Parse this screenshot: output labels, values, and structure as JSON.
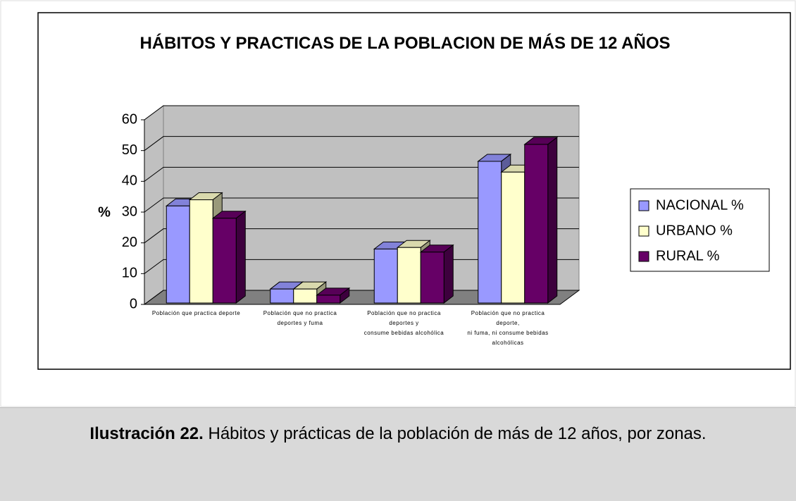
{
  "chart_data": {
    "type": "bar3d",
    "title": "HÁBITOS Y PRACTICAS DE LA POBLACION DE MÁS DE 12 AÑOS",
    "ylabel": "%",
    "categories": [
      "Población que practica deporte",
      "Población que no practica\ndeportes y fuma",
      "Población que no practica\ndeportes y\nconsume bebidas alcohólica",
      "Población que no practica\ndeporte,\nni fuma, ni consume bebidas\nalcohólicas"
    ],
    "series": [
      {
        "name": "NACIONAL %",
        "color": "#9999ff",
        "values": [
          32,
          5,
          18,
          46.5
        ]
      },
      {
        "name": "URBANO %",
        "color": "#ffffcc",
        "values": [
          34,
          5,
          18.5,
          43
        ]
      },
      {
        "name": "RURAL %",
        "color": "#660066",
        "values": [
          28,
          3,
          17,
          52
        ]
      }
    ],
    "ylim": [
      0,
      60
    ],
    "yticks": [
      0,
      10,
      20,
      30,
      40,
      50,
      60
    ],
    "grid": true,
    "legend": "right"
  },
  "caption": {
    "label": "Ilustración 22.",
    "text": "Hábitos y prácticas de la población de más de 12 años, por zonas."
  }
}
